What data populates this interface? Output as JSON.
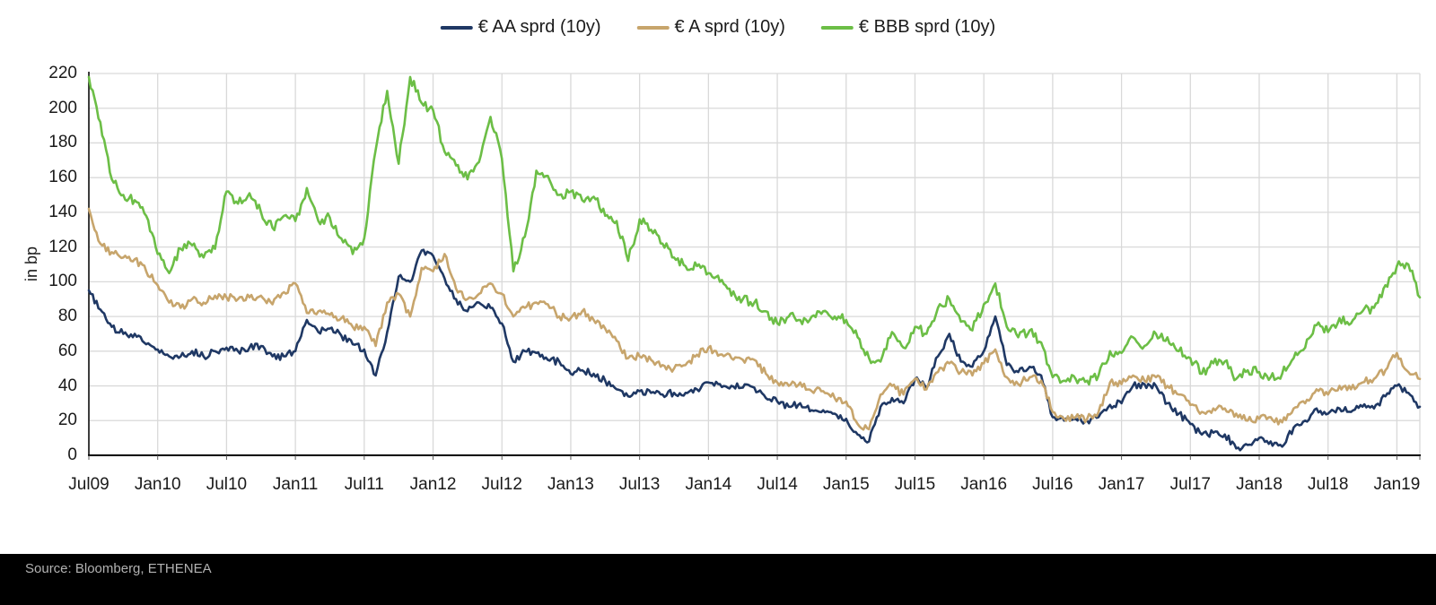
{
  "legend": [
    {
      "label": "€ AA sprd (10y)",
      "color": "#1f3864"
    },
    {
      "label": "€ A sprd (10y)",
      "color": "#c7a56c"
    },
    {
      "label": "€ BBB sprd (10y)",
      "color": "#6cbe46"
    }
  ],
  "y_axis": {
    "label": "in bp",
    "ticks": [
      0,
      20,
      40,
      60,
      80,
      100,
      120,
      140,
      160,
      180,
      200,
      220
    ]
  },
  "x_axis": {
    "tick_labels": [
      "Jul09",
      "Jan10",
      "Jul10",
      "Jan11",
      "Jul11",
      "Jan12",
      "Jul12",
      "Jan13",
      "Jul13",
      "Jan14",
      "Jul14",
      "Jan15",
      "Jul15",
      "Jan16",
      "Jul16",
      "Jan17",
      "Jul17",
      "Jan18",
      "Jul18",
      "Jan19"
    ]
  },
  "footer": {
    "source": "Source: Bloomberg, ETHENEA"
  },
  "chart_data": {
    "type": "line",
    "title": "",
    "ylabel": "in bp",
    "ylim": [
      0,
      220
    ],
    "grid": true,
    "legend_position": "top",
    "x_start": "2009-07",
    "x_end": "2019-03",
    "frequency": "monthly",
    "x_tick_labels": [
      "Jul09",
      "Jan10",
      "Jul10",
      "Jan11",
      "Jul11",
      "Jan12",
      "Jul12",
      "Jan13",
      "Jul13",
      "Jan14",
      "Jul14",
      "Jan15",
      "Jul15",
      "Jan16",
      "Jul16",
      "Jan17",
      "Jul17",
      "Jan18",
      "Jul18",
      "Jan19"
    ],
    "series": [
      {
        "name": "€ AA sprd (10y)",
        "color": "#1f3864",
        "values": [
          95,
          84,
          74,
          70,
          70,
          64,
          61,
          57,
          57,
          60,
          57,
          60,
          62,
          60,
          62,
          63,
          57,
          57,
          60,
          78,
          71,
          73,
          69,
          64,
          61,
          46,
          71,
          103,
          100,
          118,
          115,
          102,
          90,
          83,
          88,
          85,
          76,
          54,
          60,
          59,
          55,
          54,
          47,
          49,
          47,
          43,
          38,
          34,
          37,
          36,
          35,
          36,
          36,
          38,
          42,
          41,
          40,
          39,
          39,
          33,
          31,
          28,
          30,
          26,
          26,
          24,
          21,
          12,
          8,
          28,
          33,
          30,
          44,
          39,
          57,
          70,
          54,
          51,
          60,
          80,
          52,
          48,
          51,
          46,
          22,
          20,
          21,
          20,
          22,
          29,
          30,
          40,
          41,
          40,
          30,
          24,
          18,
          12,
          13,
          12,
          4,
          6,
          10,
          8,
          5,
          16,
          20,
          27,
          24,
          27,
          25,
          28,
          27,
          34,
          40,
          36,
          28
        ]
      },
      {
        "name": "€ A sprd (10y)",
        "color": "#c7a56c",
        "values": [
          142,
          122,
          117,
          114,
          113,
          106,
          98,
          88,
          85,
          90,
          88,
          92,
          91,
          90,
          91,
          92,
          87,
          94,
          99,
          82,
          83,
          81,
          79,
          74,
          74,
          63,
          88,
          93,
          80,
          108,
          106,
          116,
          96,
          90,
          93,
          99,
          93,
          80,
          85,
          88,
          87,
          80,
          79,
          83,
          78,
          73,
          66,
          56,
          57,
          55,
          52,
          50,
          52,
          58,
          62,
          58,
          56,
          55,
          55,
          47,
          42,
          40,
          42,
          37,
          37,
          33,
          31,
          18,
          15,
          35,
          40,
          35,
          44,
          38,
          48,
          53,
          48,
          46,
          53,
          61,
          45,
          41,
          45,
          43,
          25,
          21,
          22,
          21,
          25,
          42,
          41,
          46,
          43,
          45,
          40,
          35,
          29,
          25,
          27,
          27,
          24,
          20,
          21,
          22,
          19,
          27,
          30,
          38,
          35,
          40,
          38,
          42,
          44,
          49,
          59,
          48,
          44
        ]
      },
      {
        "name": "€ BBB sprd (10y)",
        "color": "#6cbe46",
        "values": [
          218,
          192,
          159,
          150,
          147,
          138,
          116,
          105,
          119,
          121,
          114,
          119,
          152,
          145,
          151,
          140,
          131,
          138,
          135,
          154,
          135,
          137,
          125,
          116,
          125,
          176,
          210,
          168,
          218,
          203,
          199,
          175,
          167,
          159,
          169,
          195,
          171,
          106,
          126,
          164,
          161,
          150,
          152,
          147,
          149,
          138,
          135,
          112,
          136,
          130,
          122,
          114,
          109,
          109,
          105,
          100,
          92,
          90,
          88,
          83,
          76,
          80,
          78,
          80,
          83,
          80,
          78,
          68,
          56,
          54,
          71,
          62,
          74,
          70,
          85,
          90,
          77,
          72,
          87,
          99,
          74,
          68,
          72,
          65,
          45,
          43,
          44,
          43,
          46,
          60,
          59,
          68,
          63,
          70,
          68,
          60,
          56,
          47,
          53,
          54,
          44,
          49,
          48,
          45,
          47,
          56,
          62,
          75,
          71,
          79,
          76,
          83,
          85,
          98,
          109,
          110,
          91
        ]
      }
    ]
  }
}
